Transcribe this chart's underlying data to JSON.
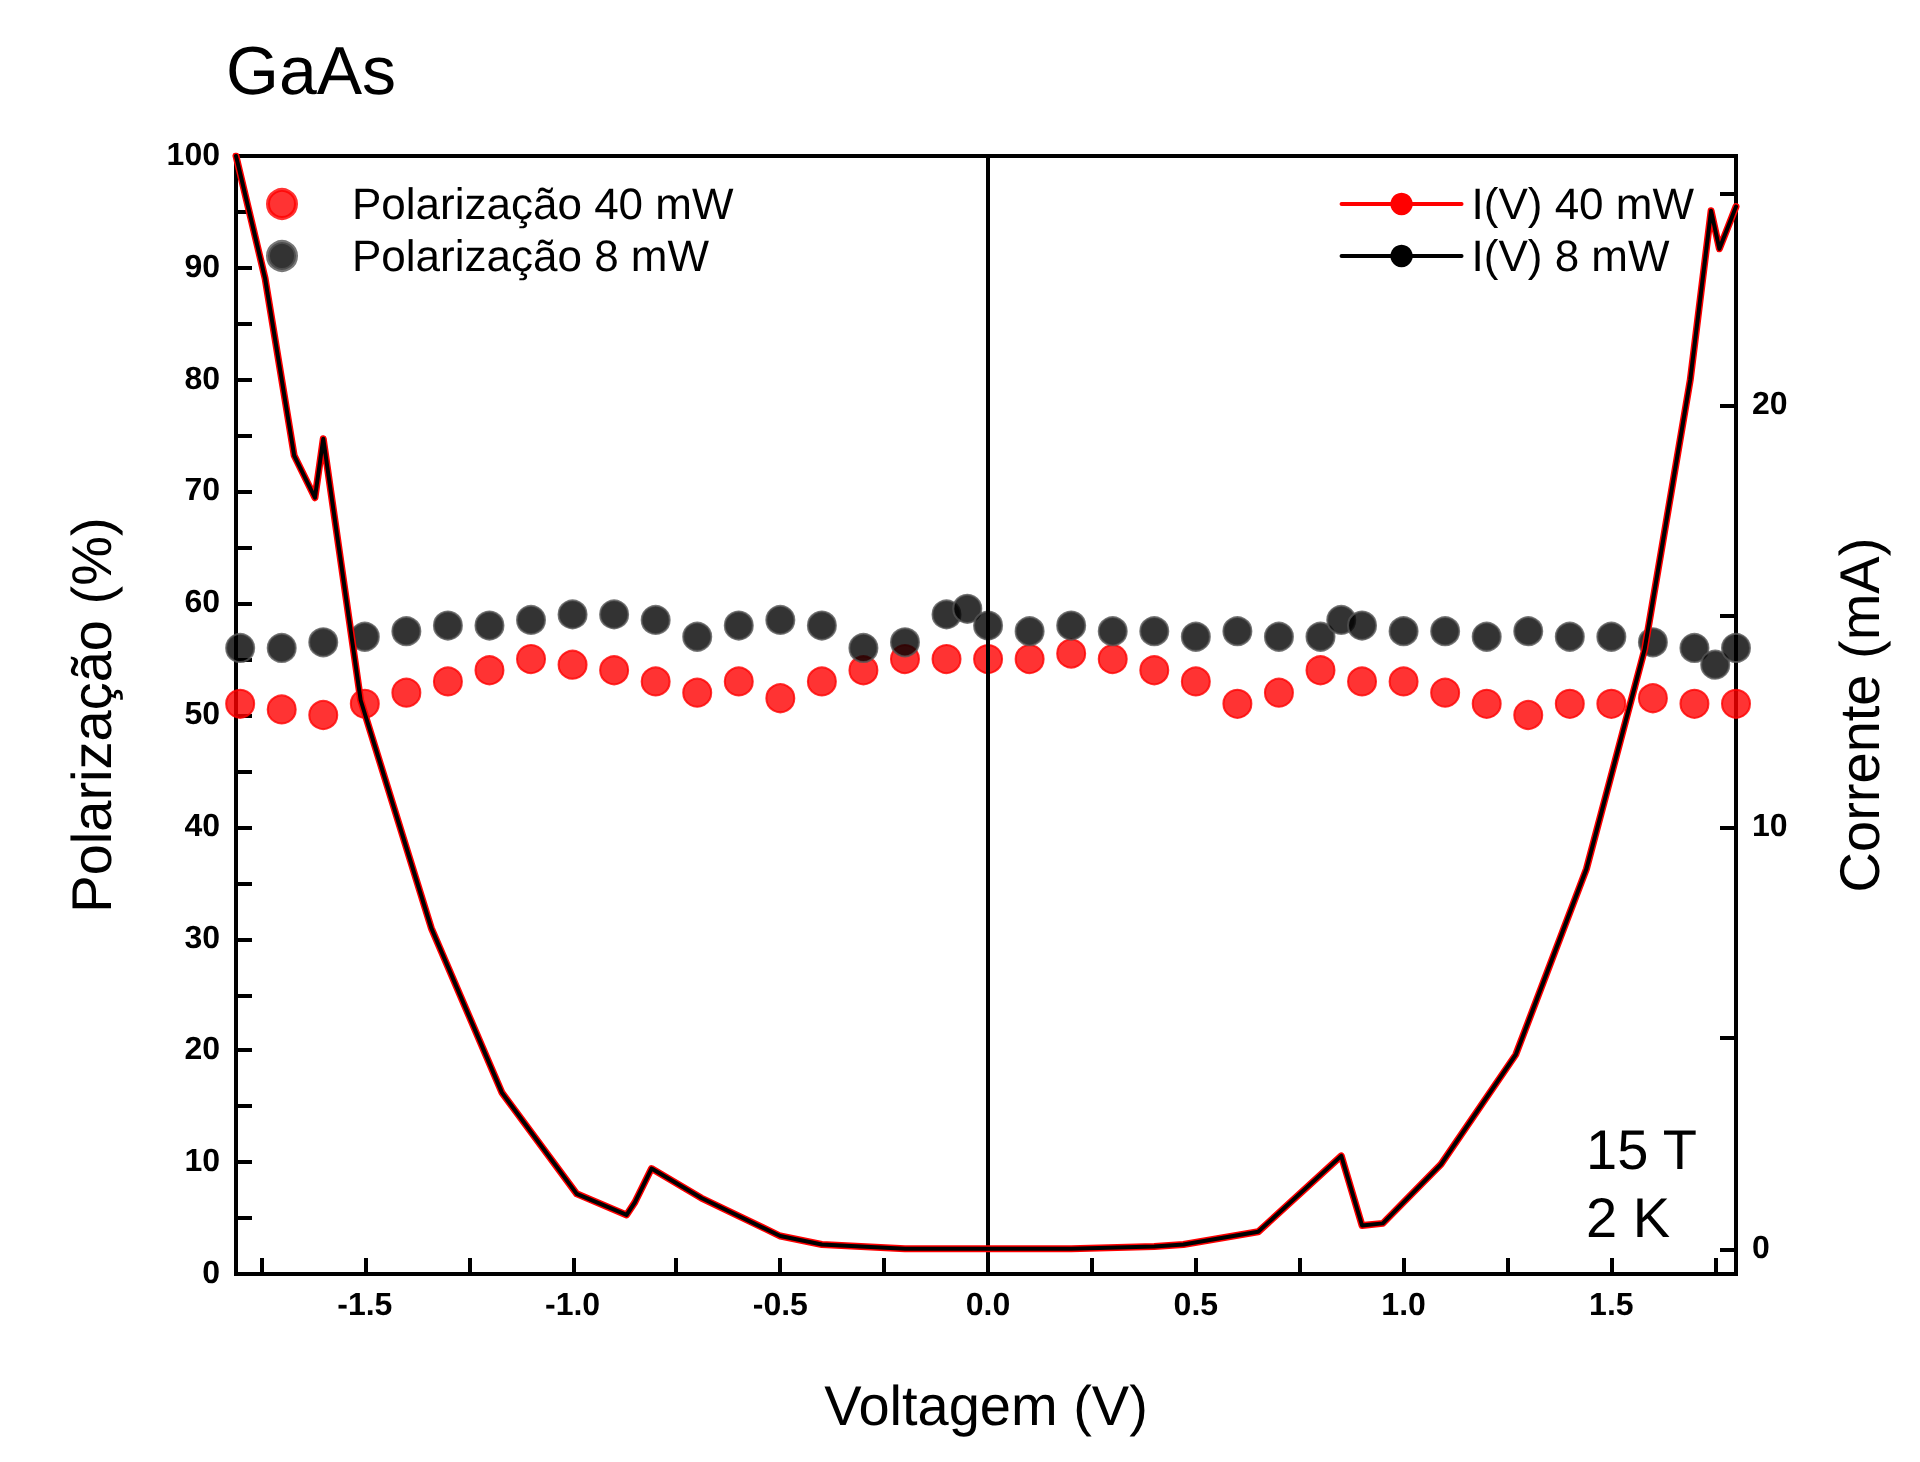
{
  "chart_data": {
    "type": "scatter",
    "title": "GaAs",
    "xlabel": "Voltagem (V)",
    "ylabel": "Polarização (%)",
    "y2label": "Corrente (mA)",
    "annotations": [
      "15 T",
      "2 K"
    ],
    "xlim": [
      -1.81,
      1.8
    ],
    "xticks": [
      {
        "value": -1.75,
        "label": null
      },
      -1.5,
      {
        "value": -1.25,
        "label": null
      },
      {
        "value": -1,
        "label": "-1.0"
      },
      {
        "value": -0.75,
        "label": null
      },
      -0.5,
      {
        "value": -0.25,
        "label": null
      },
      {
        "value": 0,
        "label": "0.0"
      },
      {
        "value": 0.25,
        "label": null
      },
      0.5,
      {
        "value": 0.75,
        "label": null
      },
      {
        "value": 1,
        "label": "1.0"
      },
      {
        "value": 1.25,
        "label": null
      },
      1.5,
      {
        "value": 1.75,
        "label": null
      }
    ],
    "ylim": [
      0,
      100
    ],
    "yticks": [
      0,
      {
        "value": 5,
        "label": null
      },
      10,
      {
        "value": 15,
        "label": null
      },
      20,
      {
        "value": 25,
        "label": null
      },
      30,
      {
        "value": 35,
        "label": null
      },
      40,
      {
        "value": 45,
        "label": null
      },
      50,
      {
        "value": 55,
        "label": null
      },
      60,
      {
        "value": 65,
        "label": null
      },
      70,
      {
        "value": 75,
        "label": null
      },
      80,
      {
        "value": 85,
        "label": null
      },
      90,
      {
        "value": 95,
        "label": null
      },
      100
    ],
    "y2lim": [
      -0.6,
      25.9
    ],
    "y2ticks": [
      0,
      {
        "value": 5,
        "label": null
      },
      10,
      {
        "value": 15,
        "label": null
      },
      20,
      {
        "value": 25,
        "label": null
      }
    ],
    "ref_lines": [
      {
        "axis": "x",
        "value": 0,
        "color": "#000000"
      }
    ],
    "legend": "top",
    "grid": false,
    "series": [
      {
        "name": "Polarização 40 mW",
        "marker": "circle",
        "color": "#ff0000",
        "x": [
          -1.8,
          -1.7,
          -1.6,
          -1.5,
          -1.4,
          -1.3,
          -1.2,
          -1.1,
          -1.0,
          -0.9,
          -0.8,
          -0.7,
          -0.6,
          -0.5,
          -0.4,
          -0.3,
          -0.2,
          -0.1,
          0.0,
          0.1,
          0.2,
          0.3,
          0.4,
          0.5,
          0.6,
          0.7,
          0.8,
          0.9,
          1.0,
          1.1,
          1.2,
          1.3,
          1.4,
          1.5,
          1.6,
          1.7,
          1.8
        ],
        "values": [
          51,
          50.5,
          50,
          51,
          52,
          53,
          54,
          55,
          54.5,
          54,
          53,
          52,
          53,
          51.5,
          53,
          54,
          55,
          55,
          55,
          55,
          55.5,
          55,
          54,
          53,
          51,
          52,
          54,
          53,
          53,
          52,
          51,
          50,
          51,
          51,
          51.5,
          51,
          51
        ]
      },
      {
        "name": "Polarização 8 mW",
        "marker": "circle",
        "color": "#000000",
        "x": [
          -1.8,
          -1.7,
          -1.6,
          -1.5,
          -1.4,
          -1.3,
          -1.2,
          -1.1,
          -1.0,
          -0.9,
          -0.8,
          -0.7,
          -0.6,
          -0.5,
          -0.4,
          -0.3,
          -0.2,
          -0.1,
          -0.05,
          0.0,
          0.1,
          0.2,
          0.3,
          0.4,
          0.5,
          0.6,
          0.7,
          0.8,
          0.85,
          0.9,
          1.0,
          1.1,
          1.2,
          1.3,
          1.4,
          1.5,
          1.6,
          1.7,
          1.75,
          1.8
        ],
        "values": [
          56,
          56,
          56.5,
          57,
          57.5,
          58,
          58,
          58.5,
          59,
          59,
          58.5,
          57,
          58,
          58.5,
          58,
          56,
          56.5,
          59,
          59.5,
          58,
          57.5,
          58,
          57.5,
          57.5,
          57,
          57.5,
          57,
          57,
          58.5,
          58,
          57.5,
          57.5,
          57,
          57.5,
          57,
          57,
          56.5,
          56,
          54.5,
          56
        ]
      },
      {
        "name": "I(V) 40 mW",
        "type": "line",
        "axis": "y2",
        "marker": "none",
        "color": "#ff0000",
        "x": [
          -1.81,
          -1.74,
          -1.67,
          -1.62,
          -1.6,
          -1.51,
          -1.34,
          -1.17,
          -0.99,
          -0.87,
          -0.85,
          -0.81,
          -0.69,
          -0.5,
          -0.4,
          -0.2,
          0.0,
          0.2,
          0.4,
          0.47,
          0.65,
          0.85,
          0.9,
          0.95,
          1.09,
          1.27,
          1.44,
          1.58,
          1.69,
          1.74,
          1.76,
          1.78,
          1.8
        ],
        "values": [
          25.9,
          23.0,
          18.8,
          17.8,
          19.2,
          13.0,
          7.6,
          3.7,
          1.3,
          0.8,
          1.1,
          1.9,
          1.2,
          0.3,
          0.1,
          0.0,
          0.0,
          0.0,
          0.05,
          0.1,
          0.4,
          2.2,
          0.55,
          0.6,
          2.0,
          4.6,
          9.0,
          14.2,
          20.6,
          24.6,
          23.7,
          24.2,
          24.7
        ]
      },
      {
        "name": "I(V) 8 mW",
        "type": "line",
        "axis": "y2",
        "marker": "none",
        "color": "#000000",
        "x": [
          -1.81,
          -1.74,
          -1.67,
          -1.62,
          -1.6,
          -1.51,
          -1.34,
          -1.17,
          -0.99,
          -0.87,
          -0.85,
          -0.81,
          -0.69,
          -0.5,
          -0.4,
          -0.2,
          0.0,
          0.2,
          0.4,
          0.47,
          0.65,
          0.85,
          0.9,
          0.95,
          1.09,
          1.27,
          1.44,
          1.58,
          1.69,
          1.74,
          1.76,
          1.78,
          1.8
        ],
        "values": [
          25.9,
          23.0,
          18.8,
          17.8,
          19.2,
          13.0,
          7.6,
          3.7,
          1.3,
          0.8,
          1.1,
          1.9,
          1.2,
          0.3,
          0.1,
          0.0,
          0.0,
          0.0,
          0.05,
          0.1,
          0.4,
          2.2,
          0.55,
          0.6,
          2.0,
          4.6,
          9.0,
          14.2,
          20.6,
          24.6,
          23.7,
          24.2,
          24.7
        ]
      }
    ]
  }
}
